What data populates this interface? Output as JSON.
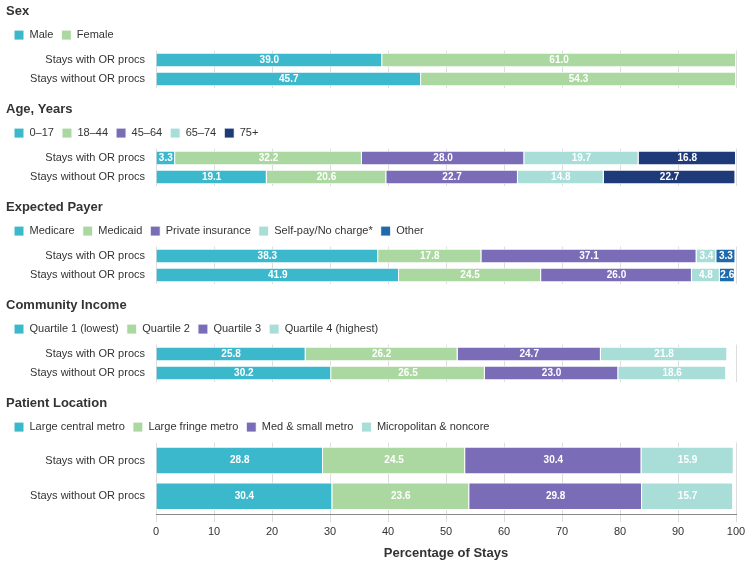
{
  "chart_data": [
    {
      "type": "bar",
      "orientation": "horizontal",
      "stacked": true,
      "title": "Sex",
      "categories": [
        "Stays with OR procs",
        "Stays without OR procs"
      ],
      "series": [
        {
          "name": "Male",
          "color": "#3cb8cc",
          "values": [
            39.0,
            45.7
          ],
          "value_labels": [
            "39.0",
            "45.7"
          ]
        },
        {
          "name": "Female",
          "color": "#aad8a0",
          "values": [
            61.0,
            54.3
          ],
          "value_labels": [
            "61.0",
            "54.3"
          ]
        }
      ],
      "xlim": [
        0,
        100
      ],
      "xticks": [
        0,
        10,
        20,
        30,
        40,
        50,
        60,
        70,
        80,
        90,
        100
      ],
      "grid": true,
      "legend": "upper left",
      "data_labels": true,
      "tick_labels": "y"
    },
    {
      "type": "bar",
      "orientation": "horizontal",
      "stacked": true,
      "title": "Age, Years",
      "categories": [
        "Stays with OR procs",
        "Stays without OR procs"
      ],
      "series": [
        {
          "name": "0–17",
          "color": "#3cb8cc",
          "values": [
            3.3,
            19.1
          ],
          "value_labels": [
            "3.3",
            "19.1"
          ]
        },
        {
          "name": "18–44",
          "color": "#aad8a0",
          "values": [
            32.2,
            20.6
          ],
          "value_labels": [
            "32.2",
            "20.6"
          ]
        },
        {
          "name": "45–64",
          "color": "#7b6cb8",
          "values": [
            28.0,
            22.7
          ],
          "value_labels": [
            "28.0",
            "22.7"
          ]
        },
        {
          "name": "65–74",
          "color": "#a8ddd8",
          "values": [
            19.7,
            14.8
          ],
          "value_labels": [
            "19.7",
            "14.8"
          ]
        },
        {
          "name": "75+",
          "color": "#1e3a78",
          "values": [
            16.8,
            22.7
          ],
          "value_labels": [
            "16.8",
            "22.7"
          ]
        }
      ],
      "xlim": [
        0,
        100
      ],
      "xticks": [
        0,
        10,
        20,
        30,
        40,
        50,
        60,
        70,
        80,
        90,
        100
      ],
      "grid": true,
      "legend": "upper left",
      "data_labels": true,
      "tick_labels": "y"
    },
    {
      "type": "bar",
      "orientation": "horizontal",
      "stacked": true,
      "title": "Expected Payer",
      "categories": [
        "Stays with OR procs",
        "Stays without OR procs"
      ],
      "series": [
        {
          "name": "Medicare",
          "color": "#3cb8cc",
          "values": [
            38.3,
            41.9
          ],
          "value_labels": [
            "38.3",
            "41.9"
          ]
        },
        {
          "name": "Medicaid",
          "color": "#aad8a0",
          "values": [
            17.8,
            24.5
          ],
          "value_labels": [
            "17.8",
            "24.5"
          ]
        },
        {
          "name": "Private insurance",
          "color": "#7b6cb8",
          "values": [
            37.1,
            26.0
          ],
          "value_labels": [
            "37.1",
            "26.0"
          ]
        },
        {
          "name": "Self-pay/No charge*",
          "color": "#a8ddd8",
          "values": [
            3.4,
            4.8
          ],
          "value_labels": [
            "3.4",
            "4.8"
          ]
        },
        {
          "name": "Other",
          "color": "#1e6aaa",
          "values": [
            3.3,
            2.6
          ],
          "value_labels": [
            "3.3",
            "2.6"
          ]
        }
      ],
      "xlim": [
        0,
        100
      ],
      "xticks": [
        0,
        10,
        20,
        30,
        40,
        50,
        60,
        70,
        80,
        90,
        100
      ],
      "grid": true,
      "legend": "upper left",
      "data_labels": true,
      "tick_labels": "y"
    },
    {
      "type": "bar",
      "orientation": "horizontal",
      "stacked": true,
      "title": "Community Income",
      "categories": [
        "Stays with OR procs",
        "Stays without OR procs"
      ],
      "series": [
        {
          "name": "Quartile 1 (lowest)",
          "color": "#3cb8cc",
          "values": [
            25.8,
            30.2
          ],
          "value_labels": [
            "25.8",
            "30.2"
          ]
        },
        {
          "name": "Quartile 2",
          "color": "#aad8a0",
          "values": [
            26.2,
            26.5
          ],
          "value_labels": [
            "26.2",
            "26.5"
          ]
        },
        {
          "name": "Quartile 3",
          "color": "#7b6cb8",
          "values": [
            24.7,
            23.0
          ],
          "value_labels": [
            "24.7",
            "23.0"
          ]
        },
        {
          "name": "Quartile 4 (highest)",
          "color": "#a8ddd8",
          "values": [
            21.8,
            18.6
          ],
          "value_labels": [
            "21.8",
            "18.6"
          ]
        }
      ],
      "xlim": [
        0,
        100
      ],
      "xticks": [
        0,
        10,
        20,
        30,
        40,
        50,
        60,
        70,
        80,
        90,
        100
      ],
      "grid": true,
      "legend": "upper left",
      "data_labels": true,
      "tick_labels": "y"
    },
    {
      "type": "bar",
      "orientation": "horizontal",
      "stacked": true,
      "title": "Patient Location",
      "categories": [
        "Stays with OR procs",
        "Stays without OR procs"
      ],
      "series": [
        {
          "name": "Large central metro",
          "color": "#3cb8cc",
          "values": [
            28.8,
            30.4
          ],
          "value_labels": [
            "28.8",
            "30.4"
          ]
        },
        {
          "name": "Large fringe metro",
          "color": "#aad8a0",
          "values": [
            24.5,
            23.6
          ],
          "value_labels": [
            "24.5",
            "23.6"
          ]
        },
        {
          "name": "Med & small metro",
          "color": "#7b6cb8",
          "values": [
            30.4,
            29.8
          ],
          "value_labels": [
            "30.4",
            "29.8"
          ]
        },
        {
          "name": "Micropolitan & noncore",
          "color": "#a8ddd8",
          "values": [
            15.9,
            15.7
          ],
          "value_labels": [
            "15.9",
            "15.7"
          ]
        }
      ],
      "xlabel": "Percentage of Stays",
      "xlim": [
        0,
        100
      ],
      "xticks": [
        0,
        10,
        20,
        30,
        40,
        50,
        60,
        70,
        80,
        90,
        100
      ],
      "grid": true,
      "legend": "upper left",
      "data_labels": true
    }
  ]
}
